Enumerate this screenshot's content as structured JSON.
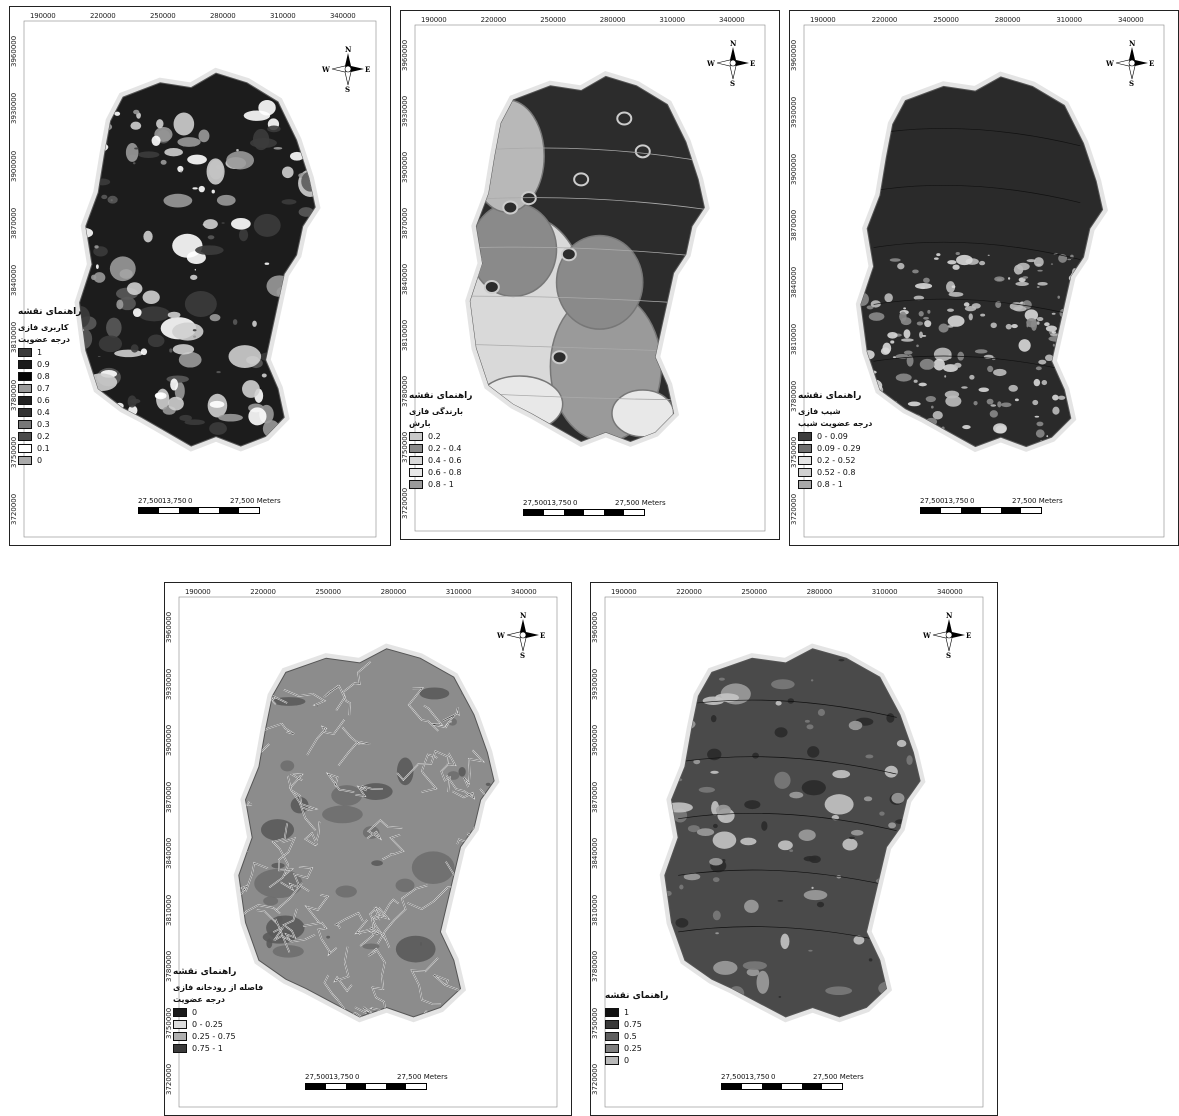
{
  "panels": [
    {
      "x_ticks": [
        "190000",
        "220000",
        "250000",
        "280000",
        "310000",
        "340000"
      ],
      "y_ticks": [
        "3960000",
        "3930000",
        "3900000",
        "3870000",
        "3840000",
        "3810000",
        "3780000",
        "3750000",
        "3720000"
      ],
      "compass": {
        "n": "N",
        "s": "S",
        "e": "E",
        "w": "W"
      },
      "legend": {
        "title": "راهنمای نقشه",
        "subtitles": [
          "کاربری فازی",
          "درجه عضویت"
        ],
        "items": [
          {
            "label": "1",
            "color": "#3a3a3a"
          },
          {
            "label": "0.9",
            "color": "#1a1a1a"
          },
          {
            "label": "0.8",
            "color": "#050505"
          },
          {
            "label": "0.7",
            "color": "#9a9a9a"
          },
          {
            "label": "0.6",
            "color": "#222222"
          },
          {
            "label": "0.4",
            "color": "#333333"
          },
          {
            "label": "0.3",
            "color": "#777777"
          },
          {
            "label": "0.2",
            "color": "#4a4a4a"
          },
          {
            "label": "0.1",
            "color": "#ffffff"
          },
          {
            "label": "0",
            "color": "#aaaaaa"
          }
        ]
      },
      "scale": {
        "labels": [
          "27,500",
          "13,750",
          "0",
          "27,500 Meters"
        ]
      },
      "map_style": "landuse"
    },
    {
      "x_ticks": [
        "190000",
        "220000",
        "250000",
        "280000",
        "310000",
        "340000"
      ],
      "y_ticks": [
        "3960000",
        "3930000",
        "3900000",
        "3870000",
        "3840000",
        "3810000",
        "3780000",
        "3750000",
        "3720000"
      ],
      "compass": {
        "n": "N",
        "s": "S",
        "e": "E",
        "w": "W"
      },
      "legend": {
        "title": "راهنمای نقشه",
        "subtitles": [
          "بارندگی فازی",
          "بارش"
        ],
        "items": [
          {
            "label": "0.2",
            "color": "#c8c8c8"
          },
          {
            "label": "0.2 - 0.4",
            "color": "#8a8a8a"
          },
          {
            "label": "0.4 - 0.6",
            "color": "#d9d9d9"
          },
          {
            "label": "0.6 - 0.8",
            "color": "#e8e8e8"
          },
          {
            "label": "0.8 - 1",
            "color": "#9a9a9a"
          }
        ]
      },
      "scale": {
        "labels": [
          "27,500",
          "13,750",
          "0",
          "27,500 Meters"
        ]
      },
      "map_style": "rain"
    },
    {
      "x_ticks": [
        "190000",
        "220000",
        "250000",
        "280000",
        "310000",
        "340000"
      ],
      "y_ticks": [
        "3960000",
        "3930000",
        "3900000",
        "3870000",
        "3840000",
        "3810000",
        "3780000",
        "3750000",
        "3720000"
      ],
      "compass": {
        "n": "N",
        "s": "S",
        "e": "E",
        "w": "W"
      },
      "legend": {
        "title": "راهنمای نقشه",
        "subtitles": [
          "شیب فازی",
          "درجه عضویت شیب"
        ],
        "items": [
          {
            "label": "0 - 0.09",
            "color": "#3c3c3c"
          },
          {
            "label": "0.09 - 0.29",
            "color": "#6f6f6f"
          },
          {
            "label": "0.2 - 0.52",
            "color": "#e5e5e5"
          },
          {
            "label": "0.52 - 0.8",
            "color": "#d0d0d0"
          },
          {
            "label": "0.8 - 1",
            "color": "#a8a8a8"
          }
        ]
      },
      "scale": {
        "labels": [
          "27,500",
          "13,750",
          "0",
          "27,500 Meters"
        ]
      },
      "map_style": "slope"
    },
    {
      "x_ticks": [
        "190000",
        "220000",
        "250000",
        "280000",
        "310000",
        "340000"
      ],
      "y_ticks": [
        "3960000",
        "3930000",
        "3900000",
        "3870000",
        "3840000",
        "3810000",
        "3780000",
        "3750000",
        "3720000"
      ],
      "compass": {
        "n": "N",
        "s": "S",
        "e": "E",
        "w": "W"
      },
      "legend": {
        "title": "راهنمای نقشه",
        "subtitles": [
          "فاصله از رودخانه فازی",
          "درجه عضویت"
        ],
        "items": [
          {
            "label": "0",
            "color": "#1a1a1a"
          },
          {
            "label": "0 - 0.25",
            "color": "#dcdcdc"
          },
          {
            "label": "0.25 - 0.75",
            "color": "#b0b0b0"
          },
          {
            "label": "0.75 - 1",
            "color": "#3a3a3a"
          }
        ]
      },
      "scale": {
        "labels": [
          "27,500",
          "13,750",
          "0",
          "27,500 Meters"
        ]
      },
      "map_style": "river"
    },
    {
      "x_ticks": [
        "190000",
        "220000",
        "250000",
        "280000",
        "310000",
        "340000"
      ],
      "y_ticks": [
        "3960000",
        "3930000",
        "3900000",
        "3870000",
        "3840000",
        "3810000",
        "3780000",
        "3750000",
        "3720000"
      ],
      "compass": {
        "n": "N",
        "s": "S",
        "e": "E",
        "w": "W"
      },
      "legend": {
        "title": "راهنمای نقشه",
        "subtitles": [],
        "items": [
          {
            "label": "1",
            "color": "#111111"
          },
          {
            "label": "0.75",
            "color": "#3a3a3a"
          },
          {
            "label": "0.5",
            "color": "#5e5e5e"
          },
          {
            "label": "0.25",
            "color": "#7e7e7e"
          },
          {
            "label": "0",
            "color": "#b8b8b8"
          }
        ]
      },
      "scale": {
        "labels": [
          "27,500",
          "13,750",
          "0",
          "27,500 Meters"
        ]
      },
      "map_style": "final"
    }
  ]
}
